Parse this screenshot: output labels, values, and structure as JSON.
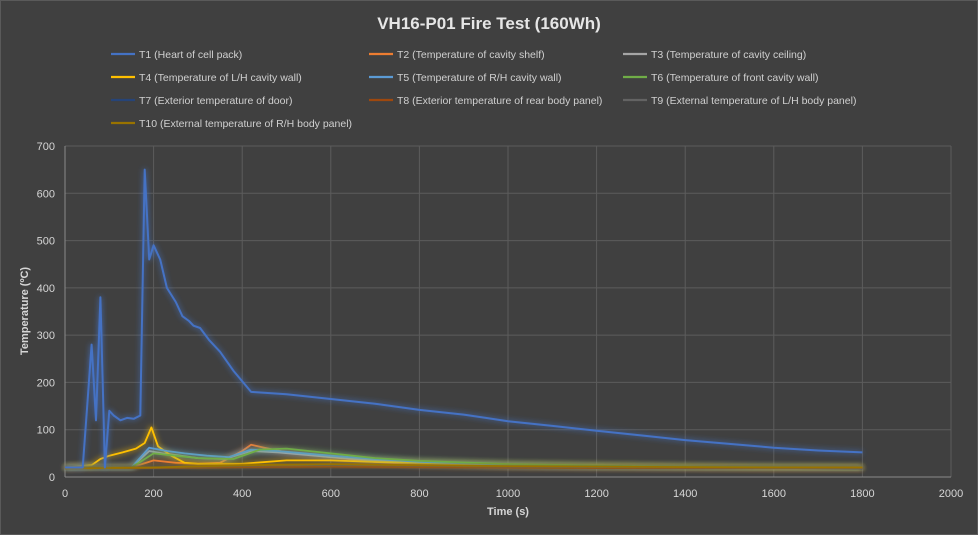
{
  "chart_data": {
    "type": "line",
    "title": "VH16-P01 Fire Test (160Wh)",
    "xlabel": "Time (s)",
    "ylabel": "Temperature (ºC)",
    "xlim": [
      0,
      2000
    ],
    "ylim": [
      0,
      700
    ],
    "xticks": [
      0,
      200,
      400,
      600,
      800,
      1000,
      1200,
      1400,
      1600,
      1800,
      2000
    ],
    "yticks": [
      0,
      100,
      200,
      300,
      400,
      500,
      600,
      700
    ],
    "grid": "vertical and horizontal",
    "legend_position": "top",
    "series": [
      {
        "name": "T1 (Heart of cell pack)",
        "color": "#4472c4",
        "points": [
          [
            0,
            20
          ],
          [
            40,
            20
          ],
          [
            50,
            150
          ],
          [
            60,
            280
          ],
          [
            70,
            120
          ],
          [
            80,
            380
          ],
          [
            85,
            200
          ],
          [
            90,
            20
          ],
          [
            100,
            140
          ],
          [
            110,
            130
          ],
          [
            125,
            120
          ],
          [
            140,
            125
          ],
          [
            155,
            123
          ],
          [
            170,
            130
          ],
          [
            180,
            650
          ],
          [
            190,
            460
          ],
          [
            200,
            490
          ],
          [
            215,
            460
          ],
          [
            230,
            400
          ],
          [
            250,
            370
          ],
          [
            265,
            340
          ],
          [
            280,
            330
          ],
          [
            290,
            320
          ],
          [
            305,
            315
          ],
          [
            325,
            290
          ],
          [
            350,
            265
          ],
          [
            380,
            225
          ],
          [
            420,
            180
          ],
          [
            500,
            175
          ],
          [
            600,
            165
          ],
          [
            700,
            155
          ],
          [
            800,
            142
          ],
          [
            900,
            132
          ],
          [
            950,
            125
          ],
          [
            1000,
            118
          ],
          [
            1100,
            108
          ],
          [
            1200,
            98
          ],
          [
            1300,
            88
          ],
          [
            1400,
            78
          ],
          [
            1500,
            70
          ],
          [
            1600,
            62
          ],
          [
            1700,
            56
          ],
          [
            1800,
            52
          ]
        ]
      },
      {
        "name": "T2 (Temperature of cavity shelf)",
        "color": "#ed7d31",
        "points": [
          [
            0,
            20
          ],
          [
            150,
            20
          ],
          [
            200,
            35
          ],
          [
            250,
            30
          ],
          [
            300,
            28
          ],
          [
            350,
            30
          ],
          [
            400,
            55
          ],
          [
            420,
            68
          ],
          [
            450,
            62
          ],
          [
            500,
            52
          ],
          [
            600,
            42
          ],
          [
            700,
            32
          ],
          [
            800,
            26
          ],
          [
            1000,
            22
          ],
          [
            1200,
            20
          ],
          [
            1400,
            19
          ],
          [
            1600,
            18
          ],
          [
            1800,
            18
          ]
        ]
      },
      {
        "name": "T3 (Temperature of cavity ceiling)",
        "color": "#a5a5a5",
        "points": [
          [
            0,
            20
          ],
          [
            150,
            20
          ],
          [
            190,
            55
          ],
          [
            220,
            50
          ],
          [
            260,
            45
          ],
          [
            300,
            40
          ],
          [
            360,
            38
          ],
          [
            420,
            55
          ],
          [
            480,
            52
          ],
          [
            600,
            42
          ],
          [
            700,
            35
          ],
          [
            800,
            30
          ],
          [
            1000,
            25
          ],
          [
            1200,
            22
          ],
          [
            1400,
            21
          ],
          [
            1600,
            20
          ],
          [
            1800,
            20
          ]
        ]
      },
      {
        "name": "T4 (Temperature of L/H cavity wall)",
        "color": "#ffc000",
        "points": [
          [
            0,
            20
          ],
          [
            60,
            25
          ],
          [
            80,
            38
          ],
          [
            100,
            45
          ],
          [
            130,
            52
          ],
          [
            160,
            60
          ],
          [
            180,
            72
          ],
          [
            195,
            105
          ],
          [
            210,
            65
          ],
          [
            240,
            45
          ],
          [
            270,
            30
          ],
          [
            300,
            28
          ],
          [
            400,
            28
          ],
          [
            500,
            35
          ],
          [
            600,
            35
          ],
          [
            700,
            32
          ],
          [
            800,
            30
          ],
          [
            1000,
            26
          ],
          [
            1200,
            24
          ],
          [
            1400,
            22
          ],
          [
            1600,
            20
          ],
          [
            1800,
            20
          ]
        ]
      },
      {
        "name": "T5 (Temperature of R/H cavity wall)",
        "color": "#5b9bd5",
        "points": [
          [
            0,
            20
          ],
          [
            150,
            20
          ],
          [
            190,
            62
          ],
          [
            230,
            55
          ],
          [
            270,
            50
          ],
          [
            320,
            45
          ],
          [
            370,
            42
          ],
          [
            420,
            58
          ],
          [
            480,
            55
          ],
          [
            600,
            45
          ],
          [
            700,
            38
          ],
          [
            800,
            32
          ],
          [
            1000,
            26
          ],
          [
            1200,
            23
          ],
          [
            1400,
            21
          ],
          [
            1600,
            20
          ],
          [
            1800,
            19
          ]
        ]
      },
      {
        "name": "T6 (Temperature of front cavity wall)",
        "color": "#70ad47",
        "points": [
          [
            0,
            20
          ],
          [
            150,
            20
          ],
          [
            200,
            50
          ],
          [
            250,
            45
          ],
          [
            300,
            40
          ],
          [
            380,
            38
          ],
          [
            440,
            58
          ],
          [
            500,
            60
          ],
          [
            600,
            50
          ],
          [
            700,
            40
          ],
          [
            800,
            34
          ],
          [
            1000,
            27
          ],
          [
            1200,
            24
          ],
          [
            1400,
            22
          ],
          [
            1600,
            21
          ],
          [
            1800,
            20
          ]
        ]
      },
      {
        "name": "T7 (Exterior temperature of door)",
        "color": "#264478",
        "points": [
          [
            0,
            18
          ],
          [
            200,
            20
          ],
          [
            400,
            22
          ],
          [
            600,
            24
          ],
          [
            800,
            22
          ],
          [
            1000,
            21
          ],
          [
            1200,
            20
          ],
          [
            1400,
            19
          ],
          [
            1600,
            19
          ],
          [
            1800,
            18
          ]
        ]
      },
      {
        "name": "T8 (Exterior temperature of rear body panel)",
        "color": "#9e480e",
        "points": [
          [
            0,
            18
          ],
          [
            200,
            19
          ],
          [
            400,
            21
          ],
          [
            600,
            22
          ],
          [
            800,
            21
          ],
          [
            1000,
            20
          ],
          [
            1200,
            19
          ],
          [
            1400,
            18
          ],
          [
            1600,
            18
          ],
          [
            1800,
            18
          ]
        ]
      },
      {
        "name": "T9 (External temperature of L/H body panel)",
        "color": "#636363",
        "points": [
          [
            0,
            18
          ],
          [
            200,
            20
          ],
          [
            400,
            24
          ],
          [
            600,
            26
          ],
          [
            800,
            24
          ],
          [
            1000,
            22
          ],
          [
            1200,
            21
          ],
          [
            1400,
            20
          ],
          [
            1600,
            19
          ],
          [
            1800,
            19
          ]
        ]
      },
      {
        "name": "T10 (External temperature of R/H body panel)",
        "color": "#997300",
        "points": [
          [
            0,
            18
          ],
          [
            200,
            20
          ],
          [
            400,
            25
          ],
          [
            600,
            27
          ],
          [
            800,
            25
          ],
          [
            1000,
            23
          ],
          [
            1200,
            22
          ],
          [
            1400,
            21
          ],
          [
            1600,
            20
          ],
          [
            1800,
            20
          ]
        ]
      }
    ]
  }
}
